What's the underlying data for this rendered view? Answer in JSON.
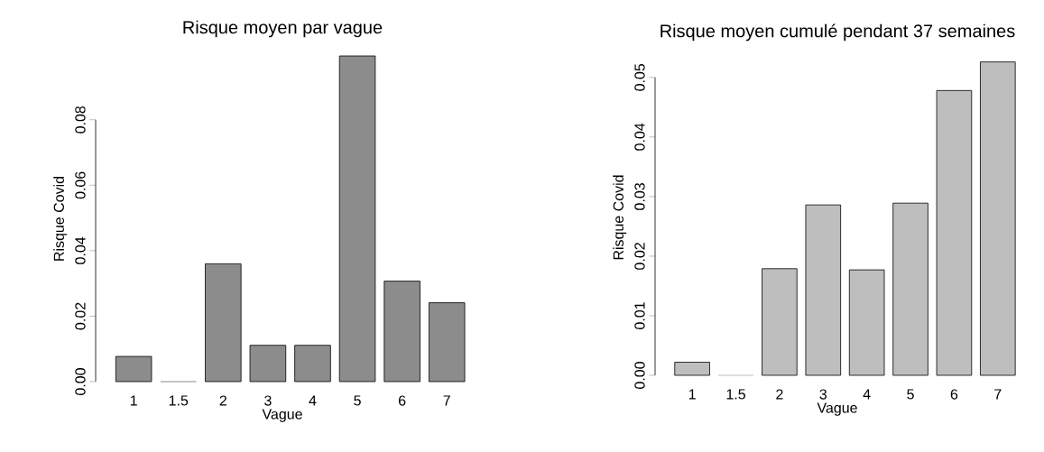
{
  "chart_data": [
    {
      "type": "bar",
      "title": "Risque moyen par vague",
      "xlabel": "Vague",
      "ylabel": "Risque Covid",
      "categories": [
        "1",
        "1.5",
        "2",
        "3",
        "4",
        "5",
        "6",
        "7"
      ],
      "values": [
        0.0077,
        0,
        0.036,
        0.0111,
        0.0111,
        0.0995,
        0.0307,
        0.0241
      ],
      "color": "#8c8c8c",
      "ylim": [
        0,
        0.0995
      ],
      "yticks": [
        {
          "value": 0,
          "label": "0.00"
        },
        {
          "value": 0.02,
          "label": "0.02"
        },
        {
          "value": 0.04,
          "label": "0.04"
        },
        {
          "value": 0.06,
          "label": "0.06"
        },
        {
          "value": 0.08,
          "label": "0.08"
        }
      ]
    },
    {
      "type": "bar",
      "title": "Risque moyen cumulé pendant 37 semaines",
      "xlabel": "Vague",
      "ylabel": "Risque Covid",
      "categories": [
        "1",
        "1.5",
        "2",
        "3",
        "4",
        "5",
        "6",
        "7"
      ],
      "values": [
        0.0022,
        0,
        0.0179,
        0.0286,
        0.0177,
        0.0289,
        0.0478,
        0.0526
      ],
      "color": "#bebebe",
      "ylim": [
        0,
        0.053
      ],
      "yticks": [
        {
          "value": 0,
          "label": "0.00"
        },
        {
          "value": 0.01,
          "label": "0.01"
        },
        {
          "value": 0.02,
          "label": "0.02"
        },
        {
          "value": 0.03,
          "label": "0.03"
        },
        {
          "value": 0.04,
          "label": "0.04"
        },
        {
          "value": 0.05,
          "label": "0.05"
        }
      ]
    }
  ]
}
